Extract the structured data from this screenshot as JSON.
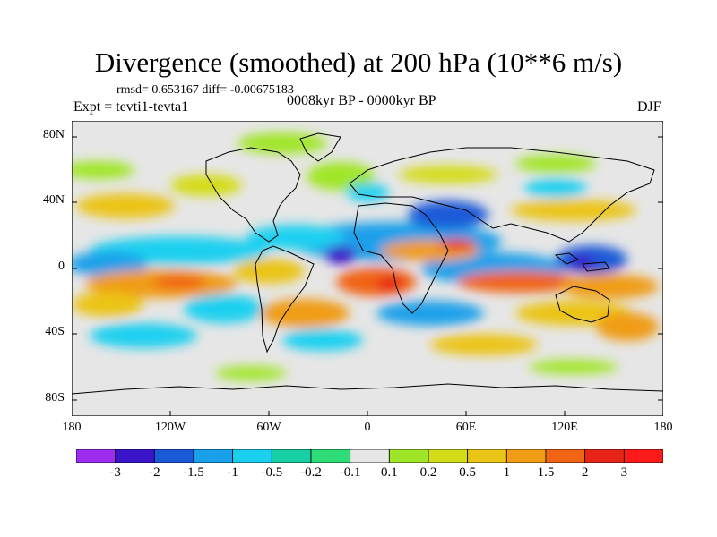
{
  "title": "Divergence (smoothed) at 200 hPa (10**6 m/s)",
  "stats": "rmsd= 0.653167 diff= -0.00675183",
  "experiment": "Expt = tevti1-tevta1",
  "period": "0008kyr BP - 0000kyr BP",
  "season": "DJF",
  "map": {
    "projection": "cylindrical-equidistant",
    "lat_ticks": [
      "80N",
      "40N",
      "0",
      "40S",
      "80S"
    ],
    "lon_ticks": [
      "180",
      "120W",
      "60W",
      "0",
      "60E",
      "120E",
      "180"
    ]
  },
  "colorbar": {
    "colors": [
      "#9d2cf0",
      "#3a14c8",
      "#1a5ad8",
      "#1aa0ea",
      "#1ad0f0",
      "#18cfa6",
      "#2edc78",
      "#e6e6e6",
      "#a0e628",
      "#d4dc18",
      "#ebc418",
      "#f09c14",
      "#f06414",
      "#e82418",
      "#ff1a1a"
    ],
    "labels": [
      "-3",
      "-2",
      "-1.5",
      "-1",
      "-0.5",
      "-0.2",
      "-0.1",
      "0.1",
      "0.2",
      "0.5",
      "1",
      "1.5",
      "2",
      "3"
    ]
  }
}
